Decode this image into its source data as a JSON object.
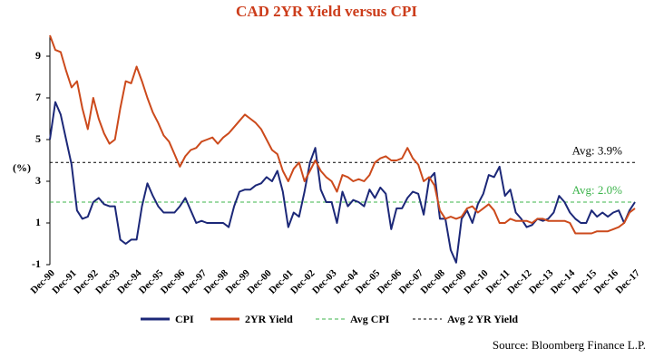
{
  "chart_data": {
    "type": "line",
    "title": "CAD 2YR Yield versus CPI",
    "y_label": "(%)",
    "source": "Source: Bloomberg Finance L.P.",
    "categories": [
      "Dec-90",
      null,
      null,
      null,
      "Dec-91",
      null,
      null,
      null,
      "Dec-92",
      null,
      null,
      null,
      "Dec-93",
      null,
      null,
      null,
      "Dec-94",
      null,
      null,
      null,
      "Dec-95",
      null,
      null,
      null,
      "Dec-96",
      null,
      null,
      null,
      "Dec-97",
      null,
      null,
      null,
      "Dec-98",
      null,
      null,
      null,
      "Dec-99",
      null,
      null,
      null,
      "Dec-00",
      null,
      null,
      null,
      "Dec-01",
      null,
      null,
      null,
      "Dec-02",
      null,
      null,
      null,
      "Dec-03",
      null,
      null,
      null,
      "Dec-04",
      null,
      null,
      null,
      "Dec-05",
      null,
      null,
      null,
      "Dec-06",
      null,
      null,
      null,
      "Dec-07",
      null,
      null,
      null,
      "Dec-08",
      null,
      null,
      null,
      "Dec-09",
      null,
      null,
      null,
      "Dec-10",
      null,
      null,
      null,
      "Dec-11",
      null,
      null,
      null,
      "Dec-12",
      null,
      null,
      null,
      "Dec-13",
      null,
      null,
      null,
      "Dec-14",
      null,
      null,
      null,
      "Dec-15",
      null,
      null,
      null,
      "Dec-16",
      null,
      null,
      null,
      "Dec-17"
    ],
    "series": [
      {
        "name": "CPI",
        "color": "#1c2878",
        "values": [
          5.0,
          6.8,
          6.2,
          5.0,
          3.8,
          1.6,
          1.2,
          1.3,
          2.0,
          2.2,
          1.9,
          1.8,
          1.8,
          0.2,
          0.0,
          0.2,
          0.2,
          1.8,
          2.9,
          2.3,
          1.8,
          1.5,
          1.5,
          1.5,
          1.8,
          2.2,
          1.6,
          1.0,
          1.1,
          1.0,
          1.0,
          1.0,
          1.0,
          0.8,
          1.8,
          2.5,
          2.6,
          2.6,
          2.8,
          2.9,
          3.2,
          3.0,
          3.5,
          2.5,
          0.8,
          1.5,
          1.3,
          2.5,
          3.9,
          4.6,
          2.6,
          2.0,
          2.0,
          1.0,
          2.5,
          1.8,
          2.1,
          2.0,
          1.8,
          2.6,
          2.2,
          2.7,
          2.4,
          0.7,
          1.7,
          1.7,
          2.2,
          2.5,
          2.4,
          1.4,
          3.1,
          3.4,
          1.2,
          1.2,
          -0.3,
          -0.9,
          1.2,
          1.6,
          1.0,
          1.9,
          2.4,
          3.3,
          3.2,
          3.7,
          2.3,
          2.6,
          1.5,
          1.2,
          0.8,
          0.9,
          1.2,
          1.1,
          1.2,
          1.5,
          2.3,
          2.0,
          1.5,
          1.2,
          1.0,
          1.0,
          1.6,
          1.3,
          1.5,
          1.3,
          1.5,
          1.6,
          1.0,
          1.6,
          2.0
        ]
      },
      {
        "name": "2YR Yield",
        "color": "#cc4a1c",
        "values": [
          10.0,
          9.3,
          9.2,
          8.3,
          7.5,
          7.8,
          6.5,
          5.5,
          7.0,
          6.0,
          5.3,
          4.8,
          5.0,
          6.5,
          7.8,
          7.7,
          8.5,
          7.8,
          7.0,
          6.3,
          5.8,
          5.2,
          4.9,
          4.3,
          3.7,
          4.2,
          4.5,
          4.6,
          4.9,
          5.0,
          5.1,
          4.8,
          5.1,
          5.3,
          5.6,
          5.9,
          6.2,
          6.0,
          5.8,
          5.5,
          5.0,
          4.5,
          4.3,
          3.5,
          3.0,
          3.6,
          3.9,
          3.0,
          3.5,
          4.0,
          3.5,
          3.2,
          3.0,
          2.5,
          3.3,
          3.2,
          3.0,
          3.1,
          3.0,
          3.3,
          3.9,
          4.1,
          4.2,
          4.0,
          4.0,
          4.1,
          4.6,
          4.1,
          3.8,
          3.0,
          3.2,
          2.8,
          1.6,
          1.2,
          1.3,
          1.2,
          1.3,
          1.7,
          1.8,
          1.5,
          1.7,
          1.9,
          1.6,
          1.0,
          1.0,
          1.2,
          1.1,
          1.1,
          1.1,
          1.0,
          1.2,
          1.2,
          1.1,
          1.1,
          1.1,
          1.1,
          1.0,
          0.5,
          0.5,
          0.5,
          0.5,
          0.6,
          0.6,
          0.6,
          0.7,
          0.8,
          1.0,
          1.5,
          1.7
        ]
      }
    ],
    "reference_lines": [
      {
        "name": "Avg CPI",
        "value": 2.0,
        "label": "Avg: 2.0%",
        "color": "#3cb44b"
      },
      {
        "name": "Avg 2 YR Yield",
        "value": 3.9,
        "label": "Avg: 3.9%",
        "color": "#000000"
      }
    ],
    "ylim": [
      -1,
      10
    ],
    "yticks": [
      -1,
      1,
      3,
      5,
      7,
      9
    ]
  }
}
